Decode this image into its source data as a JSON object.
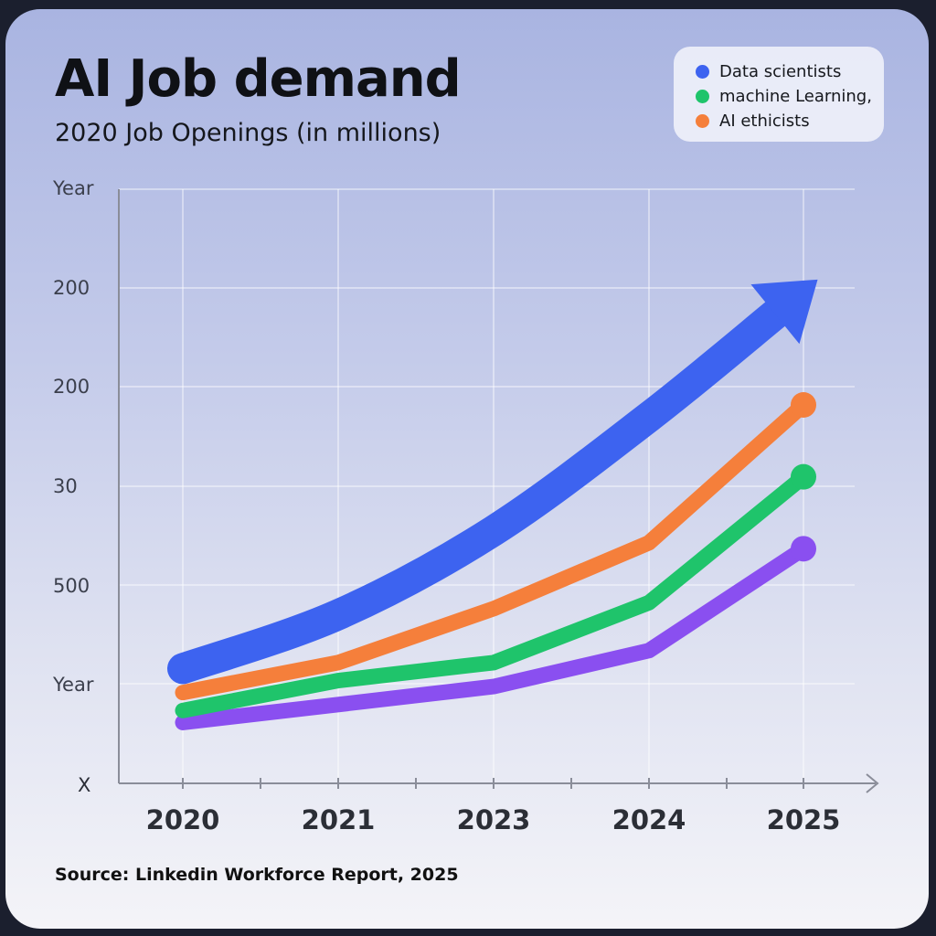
{
  "title": "AI Job demand",
  "subtitle": "2020 Job Openings (in millions)",
  "source": "Source: Linkedin Workforce Report, 2025",
  "chart_data": {
    "type": "line",
    "x": [
      "2020",
      "2021",
      "2023",
      "2024",
      "2025"
    ],
    "y_tick_labels": [
      "Year",
      "200",
      "200",
      "30",
      "500",
      "Year"
    ],
    "x_axis_end_label": "X",
    "grid": true,
    "legend_position": "top-right",
    "arrow_on_first_series": true,
    "series": [
      {
        "name": "Data scientists",
        "color": "#3d63f0",
        "values": [
          1.0,
          1.9,
          3.3,
          5.2,
          7.3
        ]
      },
      {
        "name": "machine Learning,",
        "color": "#1fc46b",
        "values": [
          0.3,
          0.8,
          1.1,
          2.1,
          4.2
        ]
      },
      {
        "name": "AI ethicists",
        "color": "#f57f3b",
        "values": [
          0.6,
          1.1,
          2.0,
          3.1,
          5.4
        ]
      },
      {
        "name": "",
        "color": "#8a4ff0",
        "values": [
          0.1,
          0.4,
          0.7,
          1.3,
          3.0
        ]
      }
    ]
  }
}
